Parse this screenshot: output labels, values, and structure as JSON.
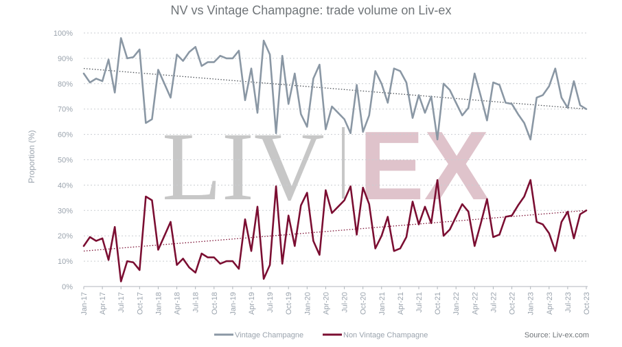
{
  "chart_data": {
    "type": "line",
    "title": "NV vs Vintage Champagne: trade volume on Liv-ex",
    "ylabel": "Proportion (%)",
    "xlabel": "",
    "ylim": [
      0,
      100
    ],
    "y_ticks": [
      "0%",
      "10%",
      "20%",
      "30%",
      "40%",
      "50%",
      "60%",
      "70%",
      "80%",
      "90%",
      "100%"
    ],
    "x_tick_labels": [
      "Jan-17",
      "Apr-17",
      "Jul-17",
      "Oct-17",
      "Jan-18",
      "Apr-18",
      "Jul-18",
      "Oct-18",
      "Jan-19",
      "Apr-19",
      "Jul-19",
      "Oct-19",
      "Jan-20",
      "Apr-20",
      "Jul-20",
      "Oct-20",
      "Jan-21",
      "Apr-21",
      "Jul-21",
      "Oct-21",
      "Jan-22",
      "Apr-22",
      "Jul-22",
      "Oct-22",
      "Jan-23",
      "Apr-23",
      "Jul-23",
      "Oct-23"
    ],
    "x_start": "Jan-17",
    "x_end": "Oct-23",
    "grid": "horizontal dotted",
    "legend_position": "bottom",
    "trendlines": "dotted linear trend for each series",
    "series": [
      {
        "name": "Vintage Champagne",
        "color": "#8a97a4",
        "trend_color": "#4a4f55",
        "values": [
          84,
          80.5,
          82,
          81,
          89.5,
          76.5,
          98,
          90,
          90.5,
          93.5,
          64.5,
          66,
          85.5,
          80,
          74.5,
          91.5,
          89,
          92.5,
          94.5,
          87,
          88.5,
          88.5,
          91,
          90,
          90,
          93,
          73.5,
          86,
          68.5,
          97,
          91.5,
          60.5,
          91,
          72,
          84,
          68,
          63,
          82,
          87.5,
          62,
          71,
          68.5,
          66,
          60.5,
          79.5,
          61,
          67.5,
          85,
          80,
          72.5,
          86,
          85,
          80.5,
          66.5,
          75.5,
          68.5,
          75,
          58,
          80,
          77.5,
          72.5,
          67.5,
          70.5,
          84,
          75,
          65.5,
          80.5,
          79.5,
          72.5,
          72,
          68,
          64.5,
          58,
          74.5,
          75.5,
          79,
          86,
          74.5,
          70.5,
          81,
          71.5,
          70
        ],
        "trend": [
          86,
          70
        ]
      },
      {
        "name": "Non Vintage Champagne",
        "color": "#7b0e32",
        "trend_color": "#7b0e32",
        "values": [
          16,
          19.5,
          18,
          19,
          10.5,
          23.5,
          2,
          10,
          9.5,
          6.5,
          35.5,
          34,
          14.5,
          20,
          25.5,
          8.5,
          11,
          7.5,
          5.5,
          13,
          11.5,
          11.5,
          9,
          10,
          10,
          7,
          26.5,
          14,
          31.5,
          3,
          8.5,
          39.5,
          9,
          28,
          16,
          32,
          37,
          18,
          12.5,
          38,
          29,
          31.5,
          34,
          39.5,
          20.5,
          39,
          32.5,
          15,
          20,
          27.5,
          14,
          15,
          19.5,
          33.5,
          24.5,
          31.5,
          25,
          42,
          20,
          22.5,
          27.5,
          32.5,
          29.5,
          16,
          25,
          34.5,
          19.5,
          20.5,
          27.5,
          28,
          32,
          35.5,
          42,
          25.5,
          24.5,
          21,
          14,
          25.5,
          29.5,
          19,
          28.5,
          30
        ],
        "trend": [
          14,
          30
        ]
      }
    ],
    "source": "Source: Liv-ex.com",
    "watermark": {
      "left": "LIV",
      "right": "EX"
    }
  },
  "colors": {
    "grid": "#c9cdd1",
    "axis": "#b0b6bc"
  }
}
